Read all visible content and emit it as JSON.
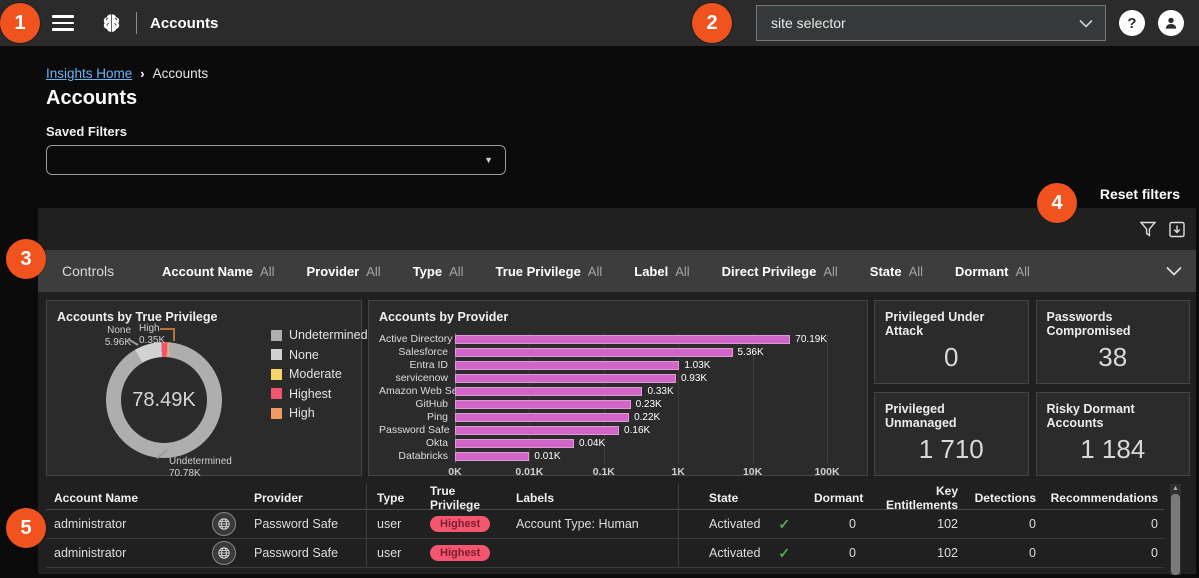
{
  "callouts": {
    "labels": [
      "1",
      "2",
      "3",
      "4",
      "5"
    ]
  },
  "navbar": {
    "title": "Accounts",
    "site_selector": {
      "value": "site selector"
    }
  },
  "breadcrumb": {
    "home": "Insights Home",
    "separator": "›",
    "current": "Accounts"
  },
  "page": {
    "title": "Accounts",
    "saved_filters_label": "Saved Filters",
    "saved_filters_value": "",
    "reset_filters_label": "Reset filters"
  },
  "controls": {
    "label": "Controls",
    "filters": [
      {
        "name": "Account Name",
        "value": "All"
      },
      {
        "name": "Provider",
        "value": "All"
      },
      {
        "name": "Type",
        "value": "All"
      },
      {
        "name": "True Privilege",
        "value": "All"
      },
      {
        "name": "Label",
        "value": "All"
      },
      {
        "name": "Direct Privilege",
        "value": "All"
      },
      {
        "name": "State",
        "value": "All"
      },
      {
        "name": "Dormant",
        "value": "All"
      }
    ]
  },
  "chart_data": [
    {
      "type": "pie",
      "title": "Accounts by True Privilege",
      "center_total": "78.49K",
      "start_angle_deg": -30,
      "segments": [
        {
          "label": "None",
          "value_k": 5.96,
          "color": "#d2d2d2"
        },
        {
          "label": "Highest",
          "value_k": 1.3,
          "color": "#f4566f"
        },
        {
          "label": "High",
          "value_k": 0.35,
          "color": "#f09a62"
        },
        {
          "label": "Moderate",
          "value_k": 0.1,
          "color": "#f5d469"
        },
        {
          "label": "Undetermined",
          "value_k": 70.78,
          "color": "#aeaeae"
        }
      ],
      "legend": [
        {
          "label": "Undetermined",
          "color": "#aeaeae"
        },
        {
          "label": "None",
          "color": "#d2d2d2"
        },
        {
          "label": "Moderate",
          "color": "#f5d469"
        },
        {
          "label": "Highest",
          "color": "#f4566f"
        },
        {
          "label": "High",
          "color": "#f09a62"
        }
      ],
      "callouts": {
        "none": {
          "label": "None",
          "value": "5.96K"
        },
        "high": {
          "label": "High",
          "value": "0.35K"
        },
        "undetermined": {
          "label": "Undetermined",
          "value": "70.78K"
        }
      }
    },
    {
      "type": "bar",
      "orientation": "horizontal",
      "scale": "log",
      "title": "Accounts by Provider",
      "categories": [
        "Active Directory",
        "Salesforce",
        "Entra ID",
        "servicenow",
        "Amazon Web Ser...",
        "GitHub",
        "Ping",
        "Password Safe",
        "Okta",
        "Databricks"
      ],
      "values_k": [
        70.19,
        5.36,
        1.03,
        0.93,
        0.33,
        0.23,
        0.22,
        0.16,
        0.04,
        0.01
      ],
      "value_labels": [
        "70.19K",
        "5.36K",
        "1.03K",
        "0.93K",
        "0.33K",
        "0.23K",
        "0.22K",
        "0.16K",
        "0.04K",
        "0.01K"
      ],
      "x_ticks": [
        "0K",
        "0.01K",
        "0.1K",
        "1K",
        "10K",
        "100K"
      ],
      "bar_color": "#d265c8"
    }
  ],
  "stat_cards": [
    {
      "title": "Privileged Under Attack",
      "value": "0"
    },
    {
      "title": "Passwords Compromised",
      "value": "38"
    },
    {
      "title": "Privileged Unmanaged",
      "value": "1 710"
    },
    {
      "title": "Risky Dormant Accounts",
      "value": "1 184"
    }
  ],
  "table": {
    "columns": [
      "Account Name",
      "Provider",
      "Type",
      "True Privilege",
      "Labels",
      "State",
      "Dormant",
      "Key Entitlements",
      "Detections",
      "Recommendations"
    ],
    "rows": [
      {
        "account_name": "administrator",
        "provider": "Password Safe",
        "type": "user",
        "true_privilege": "Highest",
        "labels": "Account Type: Human",
        "state": "Activated",
        "dormant": "0",
        "key_entitlements": "102",
        "detections": "0",
        "recommendations": "0"
      },
      {
        "account_name": "administrator",
        "provider": "Password Safe",
        "type": "user",
        "true_privilege": "Highest",
        "labels": "",
        "state": "Activated",
        "dormant": "0",
        "key_entitlements": "102",
        "detections": "0",
        "recommendations": "0"
      }
    ]
  },
  "colors": {
    "accent_orange": "#f1531f",
    "bar_pink": "#d265c8",
    "pill_pink": "#f4566f",
    "link_blue": "#6db3f2",
    "check_green": "#4caf50"
  }
}
